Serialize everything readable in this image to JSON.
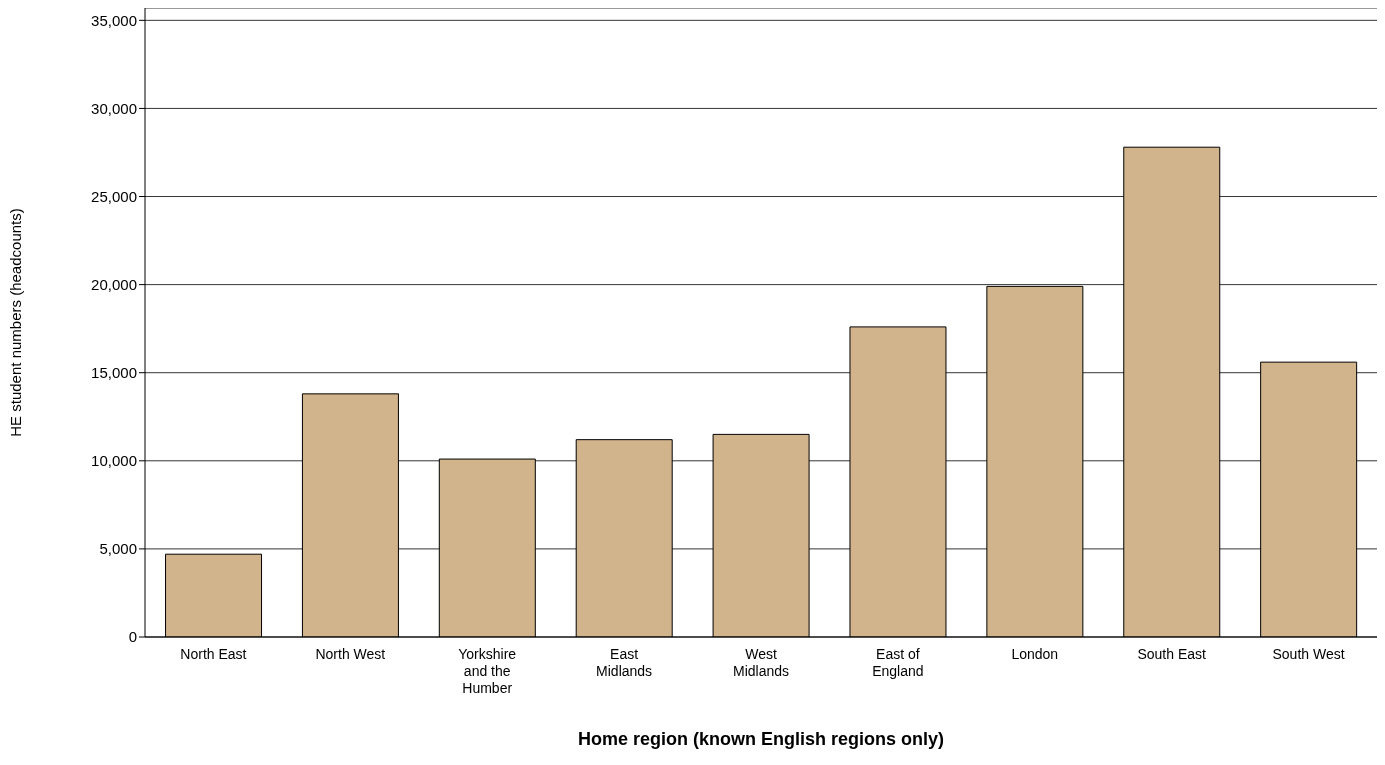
{
  "chart_data": {
    "type": "bar",
    "xlabel": "Home region (known English regions only)",
    "ylabel": "HE student numbers (headcounts)",
    "categories": [
      "North East",
      "North West",
      "Yorkshire and the Humber",
      "East Midlands",
      "West Midlands",
      "East of England",
      "London",
      "South East",
      "South West"
    ],
    "values": [
      4700,
      13800,
      10100,
      11200,
      11500,
      17600,
      19900,
      27800,
      15600
    ],
    "color": "#d2b48c",
    "ylim": [
      0,
      35700
    ],
    "yticks": [
      0,
      {
        "value": 5000,
        "label": "5,000"
      },
      {
        "value": 10000,
        "label": "10,000"
      },
      {
        "value": 15000,
        "label": "15,000"
      },
      {
        "value": 20000,
        "label": "20,000"
      },
      {
        "value": 25000,
        "label": "25,000"
      },
      {
        "value": 30000,
        "label": "30,000"
      },
      {
        "value": 35000,
        "label": "35,000"
      }
    ],
    "grid": "y"
  }
}
